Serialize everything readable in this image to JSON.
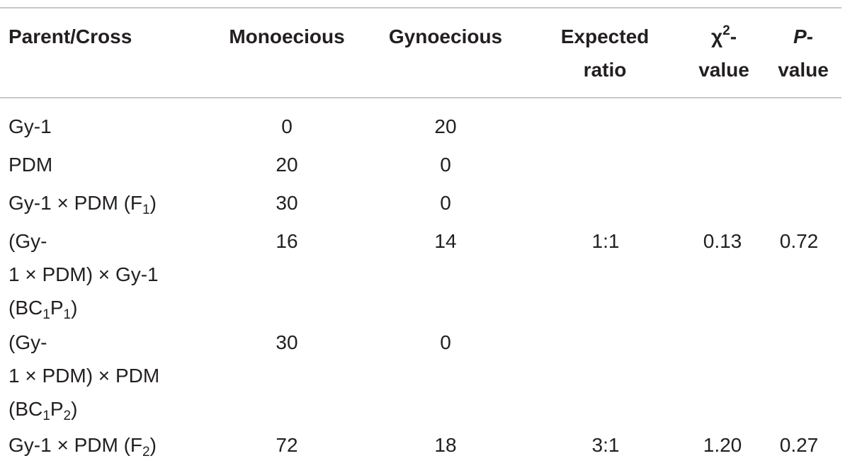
{
  "table": {
    "headers": {
      "parent_cross": "Parent/Cross",
      "monoecious": "Monoecious",
      "gynoecious": "Gynoecious",
      "expected_ratio_line1": "Expected",
      "expected_ratio_line2": "ratio",
      "chi_symbol": "χ",
      "chi_sup": "2",
      "chi_dash": "-",
      "chi_line2": "value",
      "p_symbol": "P",
      "p_dash": "-",
      "p_line2": "value"
    },
    "rows": [
      {
        "cross_line1": "Gy-1",
        "monoecious": "0",
        "gynoecious": "20",
        "expected_ratio": "",
        "chi2": "",
        "p": ""
      },
      {
        "cross_line1": "PDM",
        "monoecious": "20",
        "gynoecious": "0",
        "expected_ratio": "",
        "chi2": "",
        "p": ""
      },
      {
        "cross_line1_pre": "Gy-1 × PDM (F",
        "cross_line1_sub": "1",
        "cross_line1_post": ")",
        "monoecious": "30",
        "gynoecious": "0",
        "expected_ratio": "",
        "chi2": "",
        "p": ""
      },
      {
        "cross_line1": "(Gy-",
        "cross_line2": "1 × PDM) × Gy-1",
        "cross_line3_pre": "(BC",
        "cross_line3_sub1": "1",
        "cross_line3_mid": "P",
        "cross_line3_sub2": "1",
        "cross_line3_post": ")",
        "monoecious": "16",
        "gynoecious": "14",
        "expected_ratio": "1:1",
        "chi2": "0.13",
        "p": "0.72"
      },
      {
        "cross_line1": "(Gy-",
        "cross_line2": "1 × PDM) × PDM",
        "cross_line3_pre": "(BC",
        "cross_line3_sub1": "1",
        "cross_line3_mid": "P",
        "cross_line3_sub2": "2",
        "cross_line3_post": ")",
        "monoecious": "30",
        "gynoecious": "0",
        "expected_ratio": "",
        "chi2": "",
        "p": ""
      },
      {
        "cross_line1_pre": "Gy-1 × PDM (F",
        "cross_line1_sub": "2",
        "cross_line1_post": ")",
        "monoecious": "72",
        "gynoecious": "18",
        "expected_ratio": "3:1",
        "chi2": "1.20",
        "p": "0.27"
      }
    ]
  }
}
